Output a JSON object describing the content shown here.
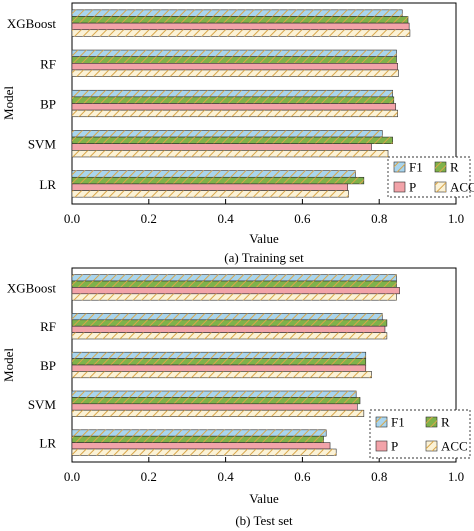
{
  "colors": {
    "F1": "#a9d5ee",
    "R": "#7fb24a",
    "P": "#f2a3a9",
    "ACC": "#fbf2d6",
    "hatch": "#d9a64a",
    "edge": "#2b2b2b"
  },
  "chart_data": [
    {
      "type": "bar",
      "orientation": "horizontal",
      "caption": "(a) Training set",
      "xlabel": "Value",
      "ylabel": "Model",
      "xlim": [
        0.0,
        1.0
      ],
      "xticks": [
        "0.0",
        "0.2",
        "0.4",
        "0.6",
        "0.8",
        "1.0"
      ],
      "categories": [
        "XGBoost",
        "RF",
        "BP",
        "SVM",
        "LR"
      ],
      "series": [
        {
          "name": "F1",
          "values": [
            0.86,
            0.845,
            0.835,
            0.808,
            0.738
          ]
        },
        {
          "name": "R",
          "values": [
            0.875,
            0.845,
            0.838,
            0.835,
            0.76
          ]
        },
        {
          "name": "P",
          "values": [
            0.878,
            0.848,
            0.843,
            0.78,
            0.718
          ]
        },
        {
          "name": "ACC",
          "values": [
            0.88,
            0.85,
            0.848,
            0.823,
            0.72
          ]
        }
      ],
      "legend": {
        "entries": [
          "F1",
          "R",
          "P",
          "ACC"
        ],
        "placement": "lower-right"
      },
      "grid": false
    },
    {
      "type": "bar",
      "orientation": "horizontal",
      "caption": "(b) Test set",
      "xlabel": "Value",
      "ylabel": "Model",
      "xlim": [
        0.0,
        1.0
      ],
      "xticks": [
        "0.0",
        "0.2",
        "0.4",
        "0.6",
        "0.8",
        "1.0"
      ],
      "categories": [
        "XGBoost",
        "RF",
        "BP",
        "SVM",
        "LR"
      ],
      "series": [
        {
          "name": "F1",
          "values": [
            0.845,
            0.808,
            0.765,
            0.74,
            0.662
          ]
        },
        {
          "name": "R",
          "values": [
            0.845,
            0.82,
            0.765,
            0.75,
            0.655
          ]
        },
        {
          "name": "P",
          "values": [
            0.853,
            0.815,
            0.765,
            0.743,
            0.672
          ]
        },
        {
          "name": "ACC",
          "values": [
            0.845,
            0.82,
            0.78,
            0.76,
            0.688
          ]
        }
      ],
      "legend": {
        "entries": [
          "F1",
          "R",
          "P",
          "ACC"
        ],
        "placement": "lower-right"
      },
      "grid": false
    }
  ]
}
